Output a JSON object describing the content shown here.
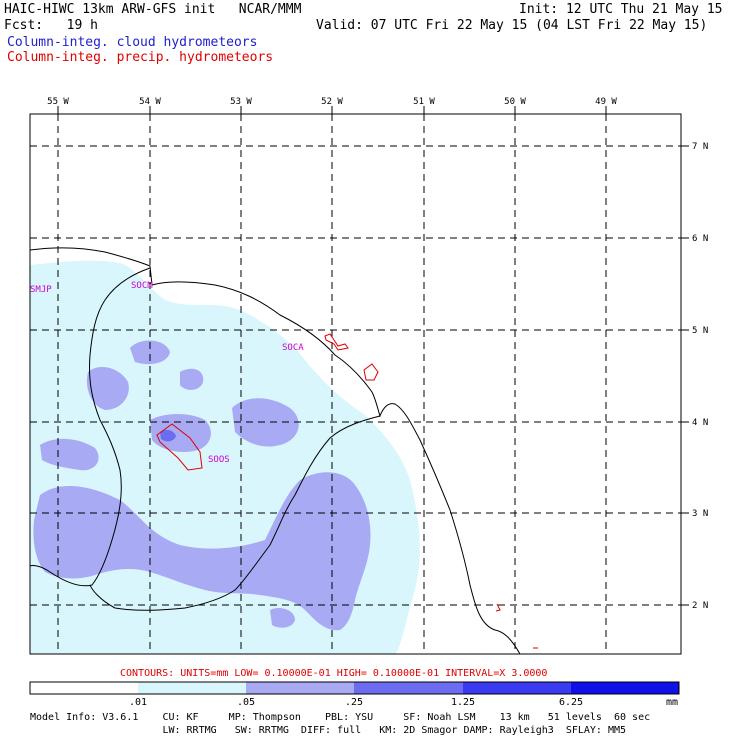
{
  "header": {
    "title_left": "HAIC-HIWC 13km ARW-GFS init   NCAR/MMM",
    "fcst": "Fcst:   19 h",
    "init": "Init: 12 UTC Thu 21 May 15",
    "valid": "Valid: 07 UTC Fri 22 May 15 (04 LST Fri 22 May 15)",
    "field1": "Column-integ. cloud hydrometeors",
    "field2": "Column-integ. precip. hydrometeors"
  },
  "colors": {
    "field1": "#2020d0",
    "field2": "#e00000",
    "shade_level1": "#d8f6fc",
    "shade_level2": "#a9aaf4",
    "shade_level3": "#6c6cf0",
    "shade_level4": "#3a3af0",
    "shade_level5": "#1010e8",
    "contour": "#e00000",
    "station": "#d000d0"
  },
  "lon_labels": [
    "55 W",
    "54 W",
    "53 W",
    "52 W",
    "51 W",
    "50 W",
    "49 W"
  ],
  "lat_labels": [
    "7 N",
    "6 N",
    "5 N",
    "4 N",
    "3 N",
    "2 N"
  ],
  "stations": [
    "SMJP",
    "SOCM",
    "SOCA",
    "SOOS"
  ],
  "contour_info": "CONTOURS:  UNITS=mm  LOW= 0.10000E-01  HIGH= 0.10000E-01  INTERVAL=X  3.0000",
  "colorbar": {
    "ticks": [
      ".01",
      ".05",
      ".25",
      "1.25",
      "6.25"
    ],
    "unit": "mm"
  },
  "model_info_line1": "Model Info: V3.6.1    CU: KF     MP: Thompson    PBL: YSU     SF: Noah LSM    13 km   51 levels  60 sec",
  "model_info_line2": "                      LW: RRTMG   SW: RRTMG  DIFF: full   KM: 2D Smagor DAMP: Rayleigh3  SFLAY: MM5"
}
